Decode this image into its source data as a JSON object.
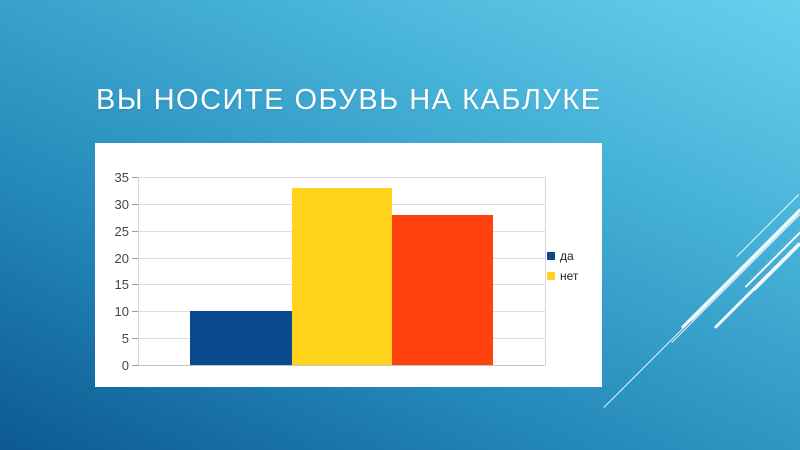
{
  "slide": {
    "title": "ВЫ НОСИТЕ ОБУВЬ НА КАБЛУКЕ"
  },
  "colors": {
    "background_top_right": "#66d1ed",
    "background_bottom_left": "#0d5991",
    "title_text": "#ffffff",
    "panel_background": "#ffffff",
    "gridline": "#dcdcdc",
    "axis_label": "#444444",
    "decor_lines": "#ffffff"
  },
  "chart_data": {
    "type": "bar",
    "title": "",
    "xlabel": "",
    "ylabel": "",
    "ylim": [
      0,
      35
    ],
    "yticks": [
      0,
      5,
      10,
      15,
      20,
      25,
      30,
      35
    ],
    "grid": true,
    "legend_position": "right",
    "series": [
      {
        "name": "да",
        "value": 10,
        "color": "#084a8d",
        "in_legend": true
      },
      {
        "name": "нет",
        "value": 33,
        "color": "#ffd21c",
        "in_legend": true
      },
      {
        "name": "",
        "value": 28,
        "color": "#ff420e",
        "in_legend": false
      }
    ]
  }
}
